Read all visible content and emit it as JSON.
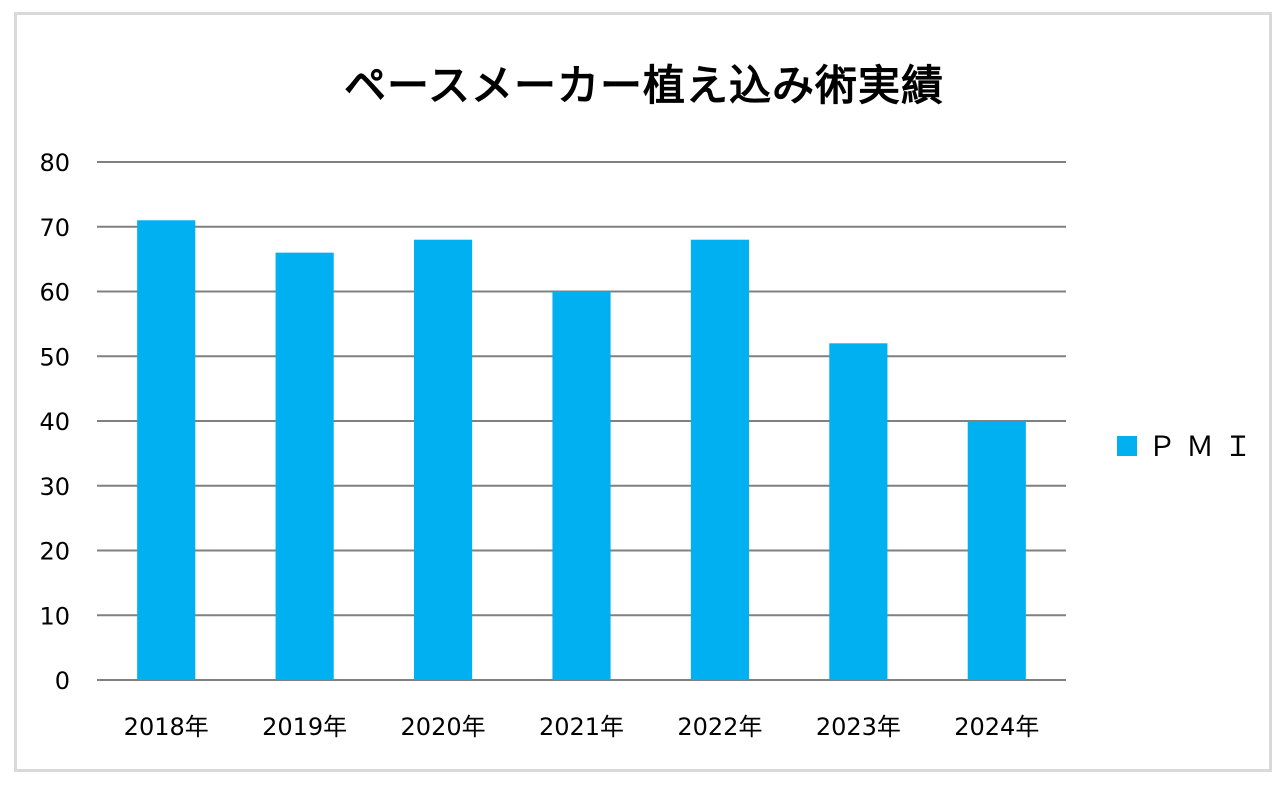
{
  "chart_data": {
    "type": "bar",
    "title": "ペースメーカー植え込み術実績",
    "categories": [
      "2018年",
      "2019年",
      "2020年",
      "2021年",
      "2022年",
      "2023年",
      "2024年"
    ],
    "series": [
      {
        "name": "ＰＭＩ",
        "values": [
          71,
          66,
          68,
          60,
          68,
          52,
          40
        ],
        "color": "#00b0f0"
      }
    ],
    "ylim": [
      0,
      80
    ],
    "yticks": [
      0,
      10,
      20,
      30,
      40,
      50,
      60,
      70,
      80
    ],
    "grid": true,
    "gridColor": "#808080",
    "legend": "right"
  }
}
